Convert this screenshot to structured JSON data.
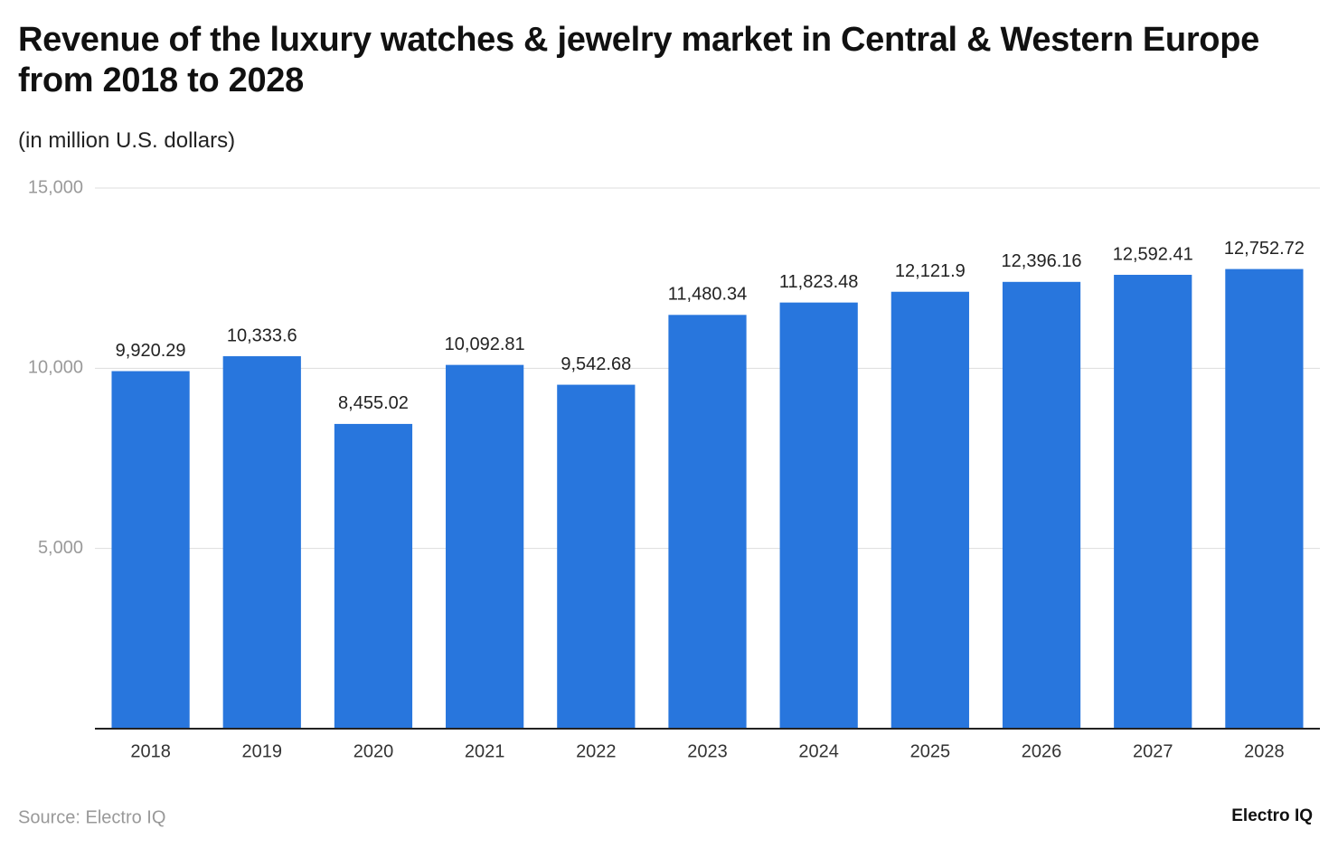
{
  "chart_data": {
    "type": "bar",
    "title": "Revenue of the luxury watches & jewelry market in Central & Western Europe from 2018 to 2028",
    "subtitle": "(in million U.S. dollars)",
    "categories": [
      "2018",
      "2019",
      "2020",
      "2021",
      "2022",
      "2023",
      "2024",
      "2025",
      "2026",
      "2027",
      "2028"
    ],
    "values": [
      9920.29,
      10333.6,
      8455.02,
      10092.81,
      9542.68,
      11480.34,
      11823.48,
      12121.9,
      12396.16,
      12592.41,
      12752.72
    ],
    "value_labels": [
      "9,920.29",
      "10,333.6",
      "8,455.02",
      "10,092.81",
      "9,542.68",
      "11,480.34",
      "11,823.48",
      "12,121.9",
      "12,396.16",
      "12,592.41",
      "12,752.72"
    ],
    "color": "#2876dd",
    "ylim": [
      0,
      15000
    ],
    "yticks": [
      {
        "value": 5000,
        "label": "5,000"
      },
      {
        "value": 10000,
        "label": "10,000"
      },
      {
        "value": 15000,
        "label": "15,000"
      }
    ],
    "grid": true,
    "source": "Source: Electro IQ",
    "brand": "Electro IQ"
  }
}
